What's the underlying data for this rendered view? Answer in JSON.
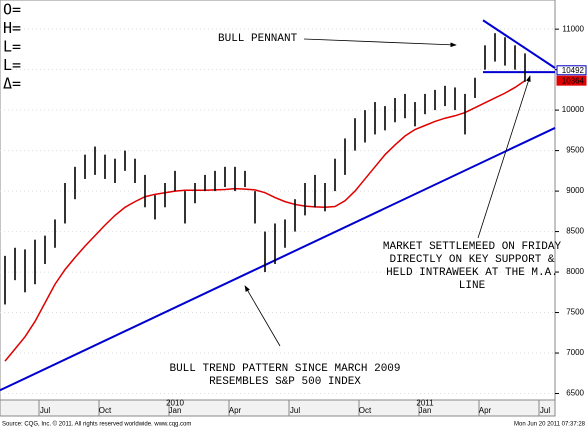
{
  "chart_data": {
    "type": "ohlc",
    "readout_labels": [
      "O=",
      "H=",
      "L=",
      "L=",
      "Δ="
    ],
    "categories": [
      null,
      null,
      null,
      null,
      "Jul",
      null,
      null,
      null,
      null,
      null,
      "Oct",
      null,
      null,
      null,
      null,
      null,
      null,
      "Jan",
      null,
      null,
      null,
      null,
      null,
      "Apr",
      null,
      null,
      null,
      null,
      null,
      "Jul",
      null,
      null,
      null,
      null,
      null,
      null,
      "Oct",
      null,
      null,
      null,
      null,
      null,
      "Jan",
      null,
      null,
      null,
      null,
      null,
      "Apr",
      null,
      null,
      null,
      null,
      null,
      "Jul"
    ],
    "year_labels": [
      null,
      null,
      null,
      null,
      null,
      null,
      null,
      null,
      null,
      null,
      null,
      null,
      null,
      null,
      null,
      null,
      null,
      "2010",
      null,
      null,
      null,
      null,
      null,
      null,
      null,
      null,
      null,
      null,
      null,
      null,
      null,
      null,
      null,
      null,
      null,
      null,
      null,
      null,
      null,
      null,
      null,
      null,
      "2011",
      null,
      null,
      null,
      null,
      null,
      null,
      null,
      null,
      null,
      null,
      null,
      null
    ],
    "highs": [
      8200,
      8300,
      8280,
      8400,
      8450,
      8650,
      9100,
      9300,
      9450,
      9550,
      9450,
      9400,
      9500,
      9400,
      9200,
      8950,
      9100,
      9250,
      9000,
      9100,
      9200,
      9250,
      9300,
      9300,
      9250,
      9000,
      8500,
      8600,
      8650,
      8900,
      9100,
      9200,
      9100,
      9400,
      9650,
      9900,
      10000,
      10100,
      10050,
      10150,
      10200,
      10100,
      10200,
      10250,
      10300,
      10280,
      10200,
      10400,
      10800,
      10950,
      10900,
      10800,
      10700,
      null,
      null
    ],
    "lows": [
      7600,
      7900,
      7750,
      7850,
      8100,
      8300,
      8600,
      8900,
      9150,
      9200,
      9150,
      9100,
      9250,
      9100,
      8800,
      8650,
      8800,
      9000,
      8600,
      8850,
      9000,
      9000,
      9050,
      9000,
      9050,
      8600,
      8000,
      8100,
      8300,
      8500,
      8700,
      8800,
      8750,
      9000,
      9200,
      9500,
      9600,
      9700,
      9750,
      9850,
      9900,
      9800,
      9950,
      10000,
      10050,
      10000,
      9700,
      10150,
      10500,
      10600,
      10550,
      10500,
      10350,
      null,
      null
    ],
    "bar_color": "#000000",
    "moving_average": {
      "color": "#e00000",
      "values": [
        6900,
        7050,
        7200,
        7390,
        7620,
        7850,
        8030,
        8180,
        8320,
        8450,
        8580,
        8700,
        8800,
        8870,
        8930,
        8960,
        8980,
        9000,
        9010,
        9010,
        9010,
        9015,
        9020,
        9030,
        9025,
        9015,
        8980,
        8920,
        8870,
        8835,
        8815,
        8805,
        8800,
        8810,
        8880,
        9000,
        9150,
        9300,
        9450,
        9570,
        9680,
        9760,
        9810,
        9860,
        9900,
        9930,
        9970,
        10030,
        10090,
        10150,
        10210,
        10280,
        10364,
        null,
        null
      ]
    },
    "last_price": {
      "value": 10492,
      "color": "#0000c0"
    },
    "ma_last": {
      "value": 10364,
      "color": "#e00000"
    },
    "trend_lines": [
      {
        "color": "#0000d0",
        "x": [
          -0.5,
          55
        ],
        "y": [
          6540,
          9780
        ]
      },
      {
        "color": "#0000d0",
        "x": [
          47.8,
          55
        ],
        "y": [
          11110,
          10520
        ]
      },
      {
        "color": "#0000d0",
        "x": [
          47.8,
          55
        ],
        "y": [
          10470,
          10470
        ]
      }
    ],
    "ylim": [
      6420,
      11360
    ],
    "yticks": [
      6500,
      7000,
      7500,
      8000,
      8500,
      9000,
      9500,
      10000,
      10500,
      11000
    ],
    "annotations": [
      {
        "lines": [
          "BULL PENNANT"
        ]
      },
      {
        "lines": [
          "MARKET SETTLEMEED ON FRIDAY",
          "DIRECTLY ON KEY SUPPORT &",
          "HELD INTRAWEEK AT THE M.A.",
          "LINE"
        ]
      },
      {
        "lines": [
          "BULL TREND PATTERN SINCE MARCH 2009",
          "RESEMBLES S&P 500 INDEX"
        ]
      }
    ],
    "footer": {
      "source": "Source: CQG, Inc. © 2011. All rights reserved worldwide. www.cqg.com",
      "timestamp": "Mon Jun 20 2011 07:37:28"
    }
  }
}
